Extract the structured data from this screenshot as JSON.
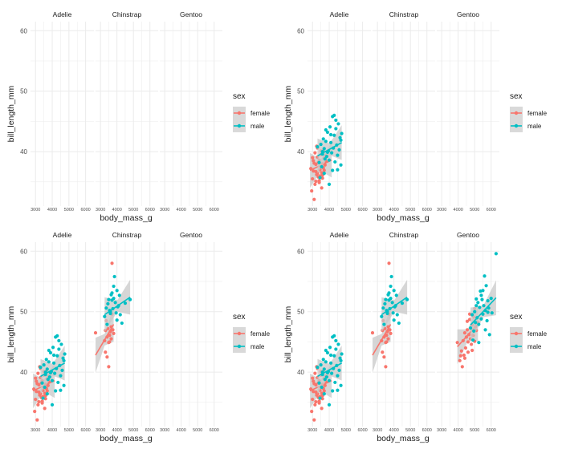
{
  "figure": {
    "panels": [
      {
        "name": "panel-top-left"
      },
      {
        "name": "panel-top-right"
      },
      {
        "name": "panel-bottom-left"
      },
      {
        "name": "panel-bottom-right"
      }
    ]
  },
  "colors": {
    "female": "#F8766D",
    "male": "#00BFC4",
    "grid": "#EBEBEB",
    "ribbon": "#C8C8C8",
    "strip_text": "#1A1A1A",
    "tick_text": "#4D4D4D"
  },
  "chart_data": [
    {
      "type": "scatter",
      "facets": [
        "Adelie",
        "Chinstrap",
        "Gentoo"
      ],
      "xlabel": "body_mass_g",
      "ylabel": "bill_length_mm",
      "xticks": [
        3000,
        4000,
        5000,
        6000
      ],
      "yticks": [
        40,
        50,
        60
      ],
      "xlim": [
        2700,
        6500
      ],
      "ylim": [
        31,
        61.5
      ],
      "legend": {
        "title": "sex",
        "items": [
          "female",
          "male"
        ],
        "position": "right"
      },
      "grid": true,
      "visible_species": [],
      "series": []
    },
    {
      "type": "scatter",
      "facets": [
        "Adelie",
        "Chinstrap",
        "Gentoo"
      ],
      "xlabel": "body_mass_g",
      "ylabel": "bill_length_mm",
      "xticks": [
        3000,
        4000,
        5000,
        6000
      ],
      "yticks": [
        40,
        50,
        60
      ],
      "xlim": [
        2700,
        6500
      ],
      "ylim": [
        31,
        61.5
      ],
      "legend": {
        "title": "sex",
        "items": [
          "female",
          "male"
        ],
        "position": "right"
      },
      "grid": true,
      "visible_species": [
        "Adelie"
      ],
      "series": []
    },
    {
      "type": "scatter",
      "facets": [
        "Adelie",
        "Chinstrap",
        "Gentoo"
      ],
      "xlabel": "body_mass_g",
      "ylabel": "bill_length_mm",
      "xticks": [
        3000,
        4000,
        5000,
        6000
      ],
      "yticks": [
        40,
        50,
        60
      ],
      "xlim": [
        2700,
        6500
      ],
      "ylim": [
        31,
        61.5
      ],
      "legend": {
        "title": "sex",
        "items": [
          "female",
          "male"
        ],
        "position": "right"
      },
      "grid": true,
      "visible_species": [
        "Adelie",
        "Chinstrap"
      ],
      "series": []
    },
    {
      "type": "scatter",
      "facets": [
        "Adelie",
        "Chinstrap",
        "Gentoo"
      ],
      "xlabel": "body_mass_g",
      "ylabel": "bill_length_mm",
      "xticks": [
        3000,
        4000,
        5000,
        6000
      ],
      "yticks": [
        40,
        50,
        60
      ],
      "xlim": [
        2700,
        6500
      ],
      "ylim": [
        31,
        61.5
      ],
      "legend": {
        "title": "sex",
        "items": [
          "female",
          "male"
        ],
        "position": "right"
      },
      "grid": true,
      "visible_species": [
        "Adelie",
        "Chinstrap",
        "Gentoo"
      ],
      "series": []
    }
  ],
  "species_data": {
    "Adelie": {
      "female": {
        "x": [
          2900,
          3000,
          3050,
          3100,
          3150,
          3200,
          3250,
          3300,
          3350,
          3400,
          3450,
          3500,
          3550,
          3600,
          3650,
          3700,
          3750,
          3800,
          2950,
          3100,
          3200,
          3300,
          3400,
          3500,
          3600,
          3700,
          3250,
          3350,
          3450,
          3150,
          3050,
          3550,
          3650,
          3400,
          3300,
          3200,
          3800,
          3600,
          3500,
          3000
        ],
        "y": [
          37.2,
          35.5,
          36.8,
          38.1,
          34.6,
          37.9,
          36.2,
          39.1,
          35.8,
          38.6,
          37.0,
          39.5,
          36.5,
          38.0,
          40.2,
          36.9,
          37.8,
          39.3,
          33.5,
          32.1,
          35.1,
          36.4,
          34.9,
          37.5,
          35.6,
          38.9,
          40.9,
          38.2,
          36.0,
          39.8,
          38.5,
          34.0,
          37.3,
          35.2,
          40.6,
          36.7,
          38.4,
          36.1,
          40.1,
          39.0
        ],
        "fit": {
          "x0": 2850,
          "y0": 36.9,
          "x1": 4150,
          "y1": 38.6
        }
      },
      "male": {
        "x": [
          3300,
          3400,
          3500,
          3550,
          3600,
          3650,
          3700,
          3750,
          3800,
          3850,
          3900,
          3950,
          4000,
          4050,
          4100,
          4150,
          4200,
          4250,
          4300,
          4350,
          4400,
          4450,
          4500,
          4550,
          4600,
          4650,
          4700,
          4750,
          3450,
          3700,
          3900,
          4100,
          4300,
          4500,
          4700,
          3800,
          4000,
          4200,
          4400,
          3600
        ],
        "y": [
          40.8,
          38.2,
          41.2,
          37.5,
          39.6,
          42.1,
          40.5,
          38.8,
          41.7,
          39.2,
          43.2,
          40.1,
          38.6,
          44.1,
          41.5,
          39.8,
          45.8,
          40.6,
          42.7,
          38.3,
          43.8,
          41.1,
          39.4,
          44.6,
          40.3,
          42.3,
          37.8,
          43.0,
          35.7,
          36.4,
          39.9,
          42.8,
          46.0,
          37.0,
          41.9,
          43.6,
          34.6,
          36.9,
          45.2,
          40.0
        ],
        "fit": {
          "x0": 3300,
          "y0": 39.3,
          "x1": 4750,
          "y1": 41.5
        }
      }
    },
    "Chinstrap": {
      "female": {
        "x": [
          2700,
          3250,
          3300,
          3350,
          3400,
          3450,
          3500,
          3550,
          3600,
          3650,
          3700,
          3750,
          3800,
          3400,
          3500,
          3600,
          3700,
          3300,
          3550,
          3650,
          3450
        ],
        "y": [
          46.5,
          45.2,
          46.9,
          48.5,
          45.8,
          47.2,
          40.9,
          46.1,
          50.1,
          45.5,
          58.0,
          47.0,
          46.4,
          42.5,
          44.9,
          46.7,
          49.6,
          43.3,
          45.0,
          47.5,
          51.3
        ],
        "fit": {
          "x0": 2700,
          "y0": 42.8,
          "x1": 3800,
          "y1": 47.9
        }
      },
      "male": {
        "x": [
          3250,
          3350,
          3450,
          3500,
          3550,
          3600,
          3650,
          3700,
          3750,
          3800,
          3850,
          3900,
          3950,
          4000,
          4050,
          4100,
          4150,
          4200,
          4300,
          4500,
          4800,
          3400,
          3600,
          3800,
          4000,
          3700
        ],
        "y": [
          49.2,
          50.6,
          51.3,
          52.0,
          50.2,
          49.7,
          52.8,
          51.9,
          50.5,
          52.2,
          55.8,
          51.5,
          49.8,
          53.5,
          50.8,
          51.0,
          52.7,
          49.5,
          48.1,
          51.4,
          52.0,
          47.9,
          50.0,
          54.2,
          48.6,
          53.1
        ],
        "fit": {
          "x0": 3250,
          "y0": 49.5,
          "x1": 4800,
          "y1": 52.4
        }
      }
    },
    "Gentoo": {
      "female": {
        "x": [
          3950,
          4100,
          4200,
          4300,
          4350,
          4400,
          4450,
          4500,
          4550,
          4600,
          4650,
          4700,
          4750,
          4800,
          4850,
          4900,
          4950,
          5000,
          5050,
          5100,
          5200,
          4250,
          4400,
          4550,
          4700,
          4850,
          5000,
          4150,
          4600
        ],
        "y": [
          44.9,
          41.9,
          43.5,
          45.2,
          42.8,
          46.5,
          44.0,
          45.8,
          47.0,
          43.3,
          46.2,
          48.7,
          45.5,
          44.6,
          47.8,
          46.1,
          49.1,
          45.1,
          47.5,
          46.9,
          48.2,
          40.9,
          42.3,
          48.4,
          49.6,
          43.6,
          50.5,
          42.7,
          45.0
        ],
        "fit": {
          "x0": 3950,
          "y0": 44.2,
          "x1": 5200,
          "y1": 48.0
        }
      },
      "male": {
        "x": [
          4750,
          4850,
          4950,
          5000,
          5050,
          5100,
          5150,
          5200,
          5250,
          5300,
          5350,
          5400,
          5450,
          5500,
          5550,
          5600,
          5650,
          5700,
          5750,
          5800,
          5850,
          5900,
          6000,
          6050,
          6300,
          5250,
          5500,
          5650,
          5800,
          5100,
          4900,
          5400
        ],
        "y": [
          47.3,
          49.5,
          46.8,
          50.0,
          48.2,
          52.1,
          49.0,
          51.5,
          47.9,
          50.7,
          53.4,
          48.8,
          52.0,
          49.6,
          51.0,
          55.9,
          50.2,
          54.3,
          48.5,
          51.8,
          50.6,
          46.2,
          52.2,
          49.8,
          59.6,
          44.9,
          53.5,
          47.0,
          49.9,
          51.0,
          45.3,
          52.7
        ],
        "fit": {
          "x0": 4750,
          "y0": 47.8,
          "x1": 6300,
          "y1": 52.3
        }
      }
    }
  }
}
